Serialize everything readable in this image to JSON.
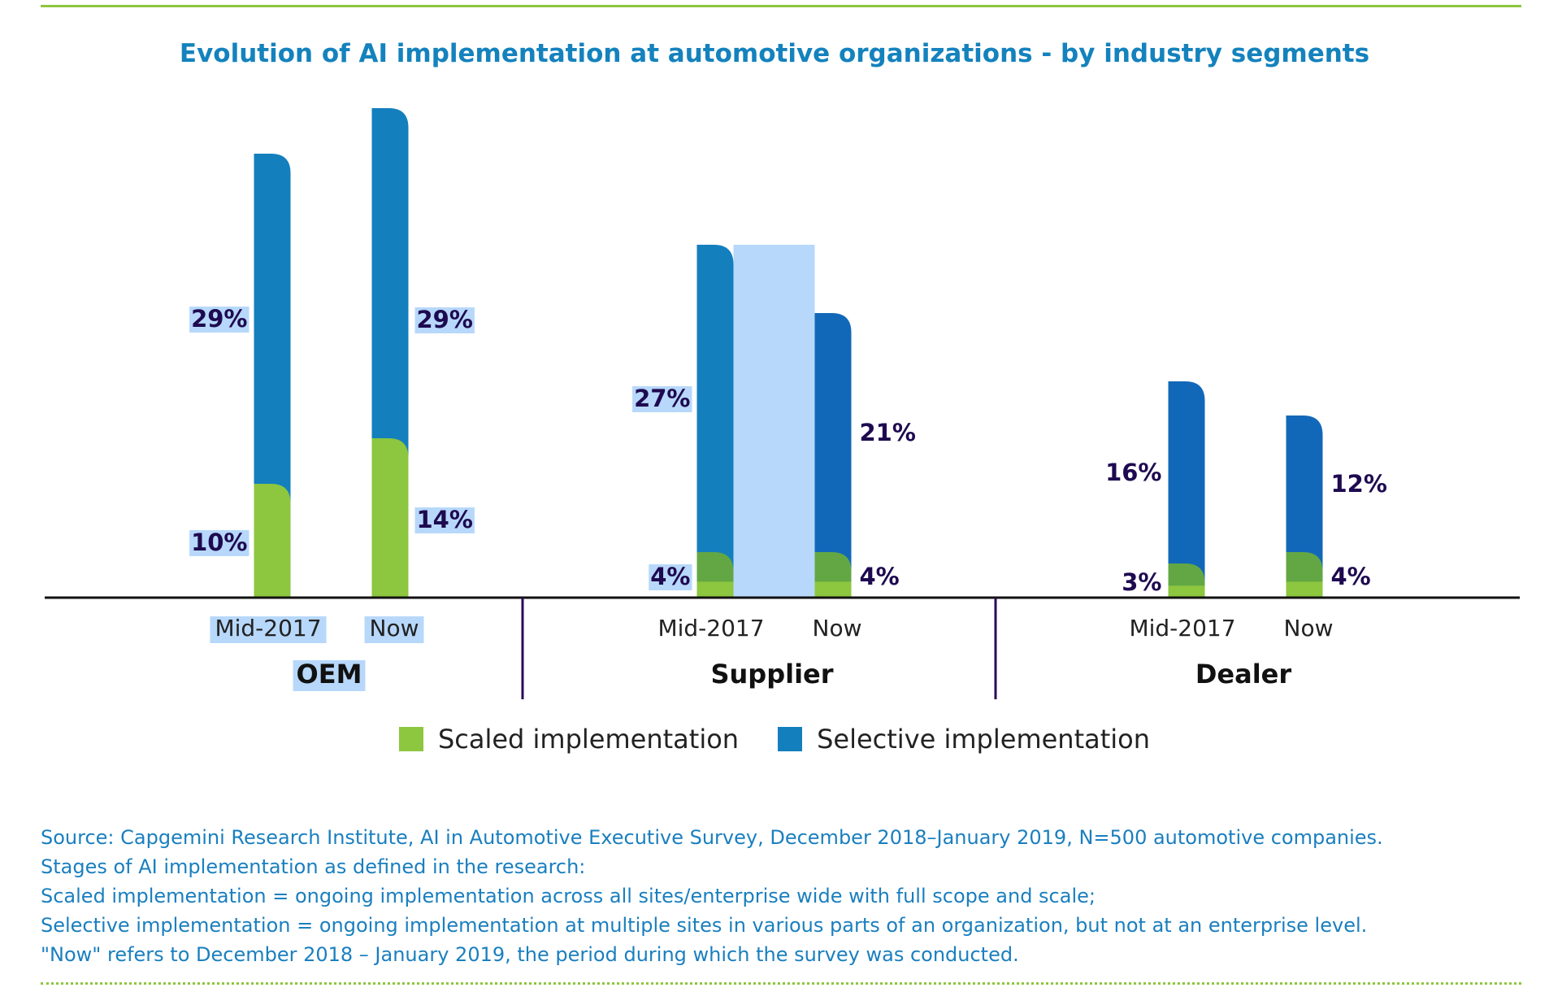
{
  "title": "Evolution of AI implementation at automotive organizations - by industry segments",
  "colors": {
    "scaled": "#8dc63f",
    "scaled_overlap": "#63a744",
    "selective": "#137fbd",
    "selective_dark": "#1268b8",
    "highlight": "#b7d8fb"
  },
  "legend": {
    "scaled": "Scaled implementation",
    "selective": "Selective implementation"
  },
  "chart_data": {
    "type": "bar",
    "stacked": true,
    "title": "Evolution of AI implementation at automotive organizations - by industry segments",
    "groups": [
      "OEM",
      "Supplier",
      "Dealer"
    ],
    "categories": [
      "Mid-2017",
      "Now"
    ],
    "series": [
      {
        "name": "Scaled implementation",
        "values": [
          [
            10,
            14
          ],
          [
            4,
            4
          ],
          [
            3,
            4
          ]
        ]
      },
      {
        "name": "Selective implementation",
        "values": [
          [
            29,
            29
          ],
          [
            27,
            21
          ],
          [
            16,
            12
          ]
        ]
      }
    ],
    "labels": {
      "scaled": [
        [
          "10%",
          "14%"
        ],
        [
          "4%",
          "4%"
        ],
        [
          "3%",
          "4%"
        ]
      ],
      "selective": [
        [
          "29%",
          "29%"
        ],
        [
          "27%",
          "21%"
        ],
        [
          "16%",
          "12%"
        ]
      ]
    },
    "ylim": [
      0,
      45
    ],
    "grid": false,
    "legend_position": "bottom"
  },
  "notes": [
    "Source: Capgemini Research Institute, AI in Automotive Executive Survey, December 2018–January 2019, N=500 automotive companies.",
    "Stages of AI implementation as defined in the research:",
    "Scaled implementation = ongoing implementation across all sites/enterprise wide with full scope and scale;",
    "Selective implementation = ongoing implementation at multiple sites in various parts of an organization, but not at an enterprise level.",
    "\"Now\" refers to December 2018 – January 2019, the period during which the survey was conducted."
  ]
}
